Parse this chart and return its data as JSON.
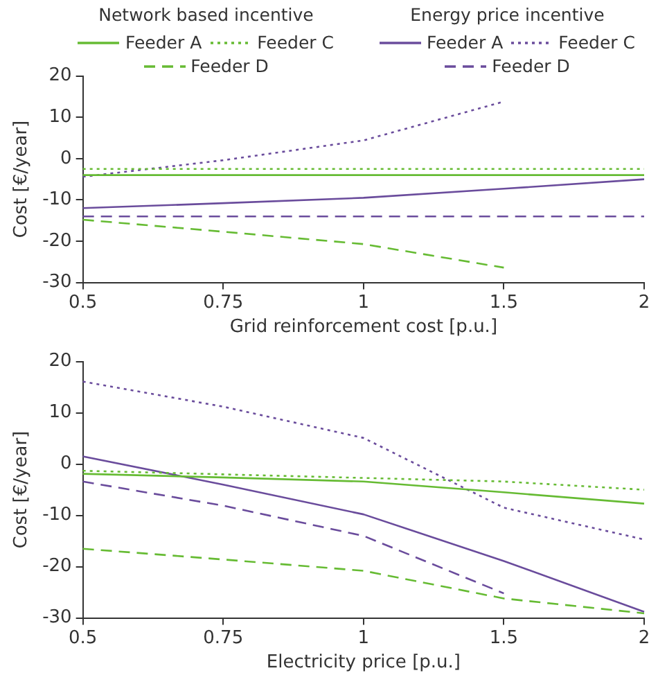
{
  "chart_data": [
    {
      "type": "line",
      "xlabel": "Grid reinforcement cost [p.u.]",
      "ylabel": "Cost [€/year]",
      "annotations": [
        "Network based incentive",
        "Energy price incentive"
      ],
      "categories": [
        "0.5",
        "0.75",
        "1",
        "1.5",
        "2"
      ],
      "ylim": [
        -30,
        20
      ],
      "yticks": [
        -30,
        -20,
        -10,
        0,
        10,
        20
      ],
      "grid": false,
      "legend": "top",
      "marker": "none",
      "series": [
        {
          "name": "Feeder A",
          "color": "#66bb33",
          "line_style": "solid",
          "values": [
            -4,
            -4,
            -4,
            -4,
            -4
          ]
        },
        {
          "name": "Feeder C",
          "color": "#66bb33",
          "line_style": "dotted",
          "values": [
            -2.5,
            -2.5,
            -2.5,
            -2.5,
            -2.5
          ]
        },
        {
          "name": "Feeder D",
          "color": "#66bb33",
          "line_style": "dashed",
          "values": [
            -14.8,
            -17.7,
            -20.7,
            -26.4,
            null
          ]
        },
        {
          "name": "Feeder A",
          "color": "#6a4c9c",
          "line_style": "solid",
          "values": [
            -12,
            -10.8,
            -9.5,
            -7.3,
            -5
          ]
        },
        {
          "name": "Feeder C",
          "color": "#6a4c9c",
          "line_style": "dotted",
          "values": [
            -4.4,
            -0.4,
            4.4,
            13.8,
            null
          ]
        },
        {
          "name": "Feeder D",
          "color": "#6a4c9c",
          "line_style": "dashed",
          "values": [
            -14,
            -14,
            -14,
            -14,
            -14
          ]
        }
      ]
    },
    {
      "type": "line",
      "xlabel": "Electricity price [p.u.]",
      "ylabel": "Cost [€/year]",
      "categories": [
        "0.5",
        "0.75",
        "1",
        "1.5",
        "2"
      ],
      "ylim": [
        -30,
        20
      ],
      "yticks": [
        -30,
        -20,
        -10,
        0,
        10,
        20
      ],
      "grid": false,
      "marker": "none",
      "series": [
        {
          "color": "#66bb33",
          "line_style": "solid",
          "values": [
            -1.9,
            -2.6,
            -3.4,
            -5.5,
            -7.7
          ]
        },
        {
          "color": "#66bb33",
          "line_style": "dotted",
          "values": [
            -1.3,
            -2,
            -2.7,
            -3.4,
            -5
          ]
        },
        {
          "color": "#66bb33",
          "line_style": "dashed",
          "values": [
            -16.5,
            -18.6,
            -20.8,
            -26.2,
            -29.1
          ]
        },
        {
          "color": "#6a4c9c",
          "line_style": "solid",
          "values": [
            1.5,
            -4,
            -9.8,
            -18.9,
            -28.8
          ]
        },
        {
          "color": "#6a4c9c",
          "line_style": "dotted",
          "values": [
            16.1,
            11.2,
            5.1,
            -8.5,
            -14.7
          ]
        },
        {
          "color": "#6a4c9c",
          "line_style": "dashed",
          "values": [
            -3.4,
            -8.1,
            -14,
            -25.2,
            null
          ]
        }
      ]
    }
  ]
}
